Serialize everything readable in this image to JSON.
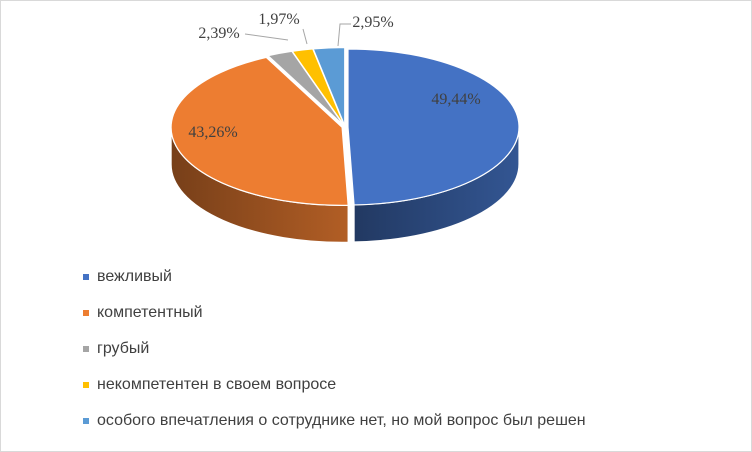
{
  "chart_data": {
    "type": "pie",
    "style": "3d",
    "title": "",
    "categories": [
      "вежливый",
      "компетентный",
      "грубый",
      "некомпетентен в своем вопросе",
      "особого впечатления о сотруднике нет, но мой вопрос был решен"
    ],
    "values": [
      49.44,
      43.26,
      2.39,
      1.97,
      2.95
    ],
    "data_labels": [
      "49,44%",
      "43,26%",
      "2,39%",
      "1,97%",
      "2,95%"
    ],
    "colors": [
      "#4472C4",
      "#ED7D31",
      "#A5A5A5",
      "#FFC000",
      "#5B9BD5"
    ],
    "legend_position": "bottom-left"
  }
}
